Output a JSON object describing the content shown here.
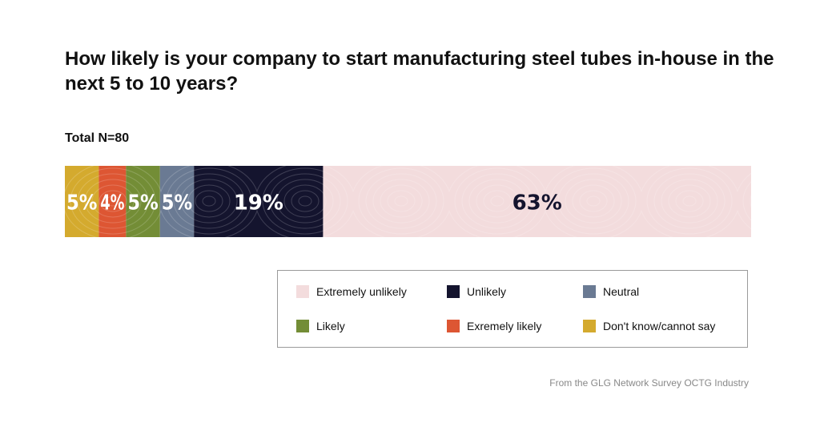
{
  "chart_data": {
    "type": "bar",
    "orientation": "horizontal-stacked-100",
    "title": "How likely is your company to start manufacturing steel tubes in-house in the next 5 to 10 years?",
    "subtitle": "Total N=80",
    "series": [
      {
        "name": "Don't know/cannot say",
        "value": 5,
        "label": "5%",
        "color": "#d4aa2e",
        "label_color": "#ffffff"
      },
      {
        "name": "Exremely likely",
        "value": 4,
        "label": "4%",
        "color": "#dd5633",
        "label_color": "#ffffff"
      },
      {
        "name": "Likely",
        "value": 5,
        "label": "5%",
        "color": "#738d36",
        "label_color": "#ffffff"
      },
      {
        "name": "Neutral",
        "value": 5,
        "label": "5%",
        "color": "#6a7a93",
        "label_color": "#ffffff"
      },
      {
        "name": "Unlikely",
        "value": 19,
        "label": "19%",
        "color": "#14142e",
        "label_color": "#ffffff"
      },
      {
        "name": "Extremely unlikely",
        "value": 63,
        "label": "63%",
        "color": "#f3dcdd",
        "label_color": "#14142e"
      }
    ],
    "legend": {
      "position": "bottom-right",
      "items": [
        {
          "label": "Extremely unlikely",
          "color": "#f3dcdd"
        },
        {
          "label": "Unlikely",
          "color": "#14142e"
        },
        {
          "label": "Neutral",
          "color": "#6a7a93"
        },
        {
          "label": "Likely",
          "color": "#738d36"
        },
        {
          "label": "Exremely likely",
          "color": "#dd5633"
        },
        {
          "label": "Don't know/cannot say",
          "color": "#d4aa2e"
        }
      ]
    },
    "source": "From the GLG Network Survey OCTG Industry"
  }
}
